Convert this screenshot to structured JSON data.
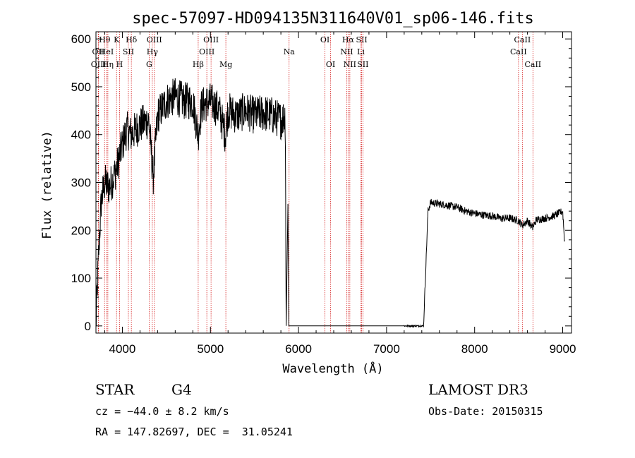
{
  "chart_data": {
    "type": "line",
    "title": "spec-57097-HD094135N311640V01_sp06-146.fits",
    "xlabel": "Wavelength (Å)",
    "ylabel": "Flux (relative)",
    "xlim": [
      3700,
      9100
    ],
    "ylim": [
      -15,
      615
    ],
    "xticks": [
      4000,
      5000,
      6000,
      7000,
      8000,
      9000
    ],
    "yticks": [
      0,
      100,
      200,
      300,
      400,
      500,
      600
    ],
    "segments": [
      {
        "x": [
          3700,
          3730,
          3760,
          3800,
          3850,
          3900,
          3950,
          4000,
          4050,
          4100,
          4200,
          4300,
          4350,
          4400,
          4500,
          4600,
          4700,
          4800,
          4860,
          4900,
          5000,
          5100,
          5170,
          5200,
          5300,
          5400,
          5500,
          5600,
          5700,
          5800,
          5850,
          5860
        ],
        "y": [
          0,
          150,
          260,
          300,
          290,
          310,
          340,
          380,
          410,
          400,
          420,
          430,
          310,
          440,
          470,
          480,
          470,
          470,
          400,
          460,
          470,
          450,
          400,
          450,
          440,
          450,
          440,
          445,
          440,
          430,
          440,
          0
        ],
        "noise": 40
      },
      {
        "x": [
          5860,
          5880,
          5890,
          5900,
          7200
        ],
        "y": [
          0,
          255,
          0,
          0,
          0
        ],
        "noise": 0
      },
      {
        "x": [
          7200,
          7420
        ],
        "y": [
          0,
          0
        ],
        "noise": 6
      },
      {
        "x": [
          7420,
          7470,
          7500,
          7600,
          7700,
          7800,
          7900,
          8000,
          8100,
          8200,
          8300,
          8400,
          8500,
          8540,
          8600,
          8660,
          8700,
          8800,
          8900,
          9000,
          9020
        ],
        "y": [
          0,
          240,
          258,
          255,
          252,
          248,
          240,
          235,
          232,
          230,
          225,
          225,
          220,
          210,
          220,
          205,
          222,
          225,
          230,
          240,
          180
        ],
        "noise": 8
      }
    ],
    "emission_lines": [
      {
        "label": "Hθ",
        "x": 3798,
        "row": 0
      },
      {
        "label": "OII",
        "x": 3727,
        "row": 1
      },
      {
        "label": "OIII",
        "x": 3730,
        "row": 2
      },
      {
        "label": "HeI",
        "x": 3820,
        "row": 1
      },
      {
        "label": "Hη",
        "x": 3835,
        "row": 2
      },
      {
        "label": "K",
        "x": 3934,
        "row": 0
      },
      {
        "label": "SII",
        "x": 4068,
        "row": 1
      },
      {
        "label": "H",
        "x": 3968,
        "row": 2
      },
      {
        "label": "Hδ",
        "x": 4102,
        "row": 0
      },
      {
        "label": "OIII",
        "x": 4363,
        "row": 0
      },
      {
        "label": "Hγ",
        "x": 4340,
        "row": 1
      },
      {
        "label": "G",
        "x": 4304,
        "row": 2
      },
      {
        "label": "Hβ",
        "x": 4861,
        "row": 2
      },
      {
        "label": "OIII",
        "x": 5007,
        "row": 0
      },
      {
        "label": "OIII",
        "x": 4959,
        "row": 1
      },
      {
        "label": "Mg",
        "x": 5175,
        "row": 2
      },
      {
        "label": "Na",
        "x": 5893,
        "row": 1
      },
      {
        "label": "OI",
        "x": 6300,
        "row": 0
      },
      {
        "label": "OI",
        "x": 6364,
        "row": 2
      },
      {
        "label": "Hα",
        "x": 6563,
        "row": 0
      },
      {
        "label": "SII",
        "x": 6717,
        "row": 0
      },
      {
        "label": "NII",
        "x": 6548,
        "row": 1
      },
      {
        "label": "Li",
        "x": 6708,
        "row": 1
      },
      {
        "label": "NII",
        "x": 6583,
        "row": 2
      },
      {
        "label": "SII",
        "x": 6731,
        "row": 2
      },
      {
        "label": "CaII",
        "x": 8542,
        "row": 0
      },
      {
        "label": "CaII",
        "x": 8498,
        "row": 1
      },
      {
        "label": "CaII",
        "x": 8662,
        "row": 2
      }
    ]
  },
  "info": {
    "object_class": "STAR",
    "subclass": "G4",
    "survey": "LAMOST DR3",
    "cz": "cz = −44.0 ± 8.2 km/s",
    "obs_date": "Obs-Date: 20150315",
    "coords": "RA = 147.82697, DEC =  31.05241"
  }
}
